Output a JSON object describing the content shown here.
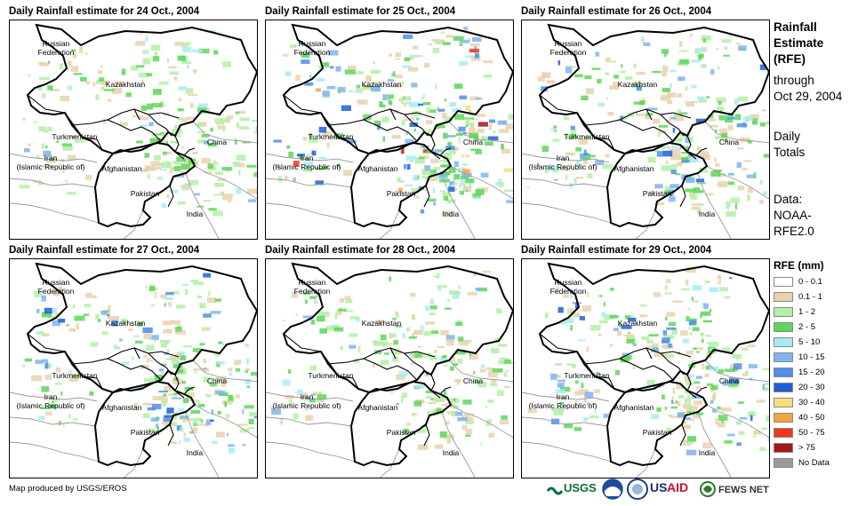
{
  "panels": [
    {
      "title": "Daily Rainfall estimate for 24 Oct., 2004",
      "intensity": "light"
    },
    {
      "title": "Daily Rainfall estimate for 25 Oct., 2004",
      "intensity": "heavy"
    },
    {
      "title": "Daily Rainfall estimate for 26 Oct., 2004",
      "intensity": "moderate"
    },
    {
      "title": "Daily Rainfall estimate for 27 Oct., 2004",
      "intensity": "moderate"
    },
    {
      "title": "Daily Rainfall estimate for 28 Oct., 2004",
      "intensity": "light"
    },
    {
      "title": "Daily Rainfall estimate for 29 Oct., 2004",
      "intensity": "moderate"
    }
  ],
  "map_labels": {
    "russia": "Russian\nFederation",
    "kazakhstan": "Kazakhstan",
    "turkmenistan": "Turkmenistan",
    "iran": "Iran\n(Islamic Republic of)",
    "afghanistan": "Afghanistan",
    "pakistan": "Pakistan",
    "china": "China",
    "india": "India"
  },
  "sidebar": {
    "title_line1": "Rainfall",
    "title_line2": "Estimate",
    "title_line3": "(RFE)",
    "through_label": "through",
    "through_date": "Oct 29, 2004",
    "totals_line1": "Daily",
    "totals_line2": "Totals",
    "data_line1": "Data:",
    "data_line2": "NOAA-",
    "data_line3": "RFE2.0"
  },
  "legend": {
    "title": "RFE (mm)",
    "items": [
      {
        "label": "0 - 0.1",
        "color": "#ffffff"
      },
      {
        "label": "0.1 - 1",
        "color": "#e8d2ad"
      },
      {
        "label": "1 - 2",
        "color": "#b3f0a8"
      },
      {
        "label": "2 - 5",
        "color": "#5fd65a"
      },
      {
        "label": "5 - 10",
        "color": "#a8ecf2"
      },
      {
        "label": "10 - 15",
        "color": "#7fb4f0"
      },
      {
        "label": "15 - 20",
        "color": "#4f8fe6"
      },
      {
        "label": "20 - 30",
        "color": "#1f5fd9"
      },
      {
        "label": "30 - 40",
        "color": "#f7e07a"
      },
      {
        "label": "40 - 50",
        "color": "#f2a640"
      },
      {
        "label": "50 - 75",
        "color": "#ee3a1a"
      },
      {
        "label": "> 75",
        "color": "#a01818"
      },
      {
        "label": "No Data",
        "color": "#9a9a9a"
      }
    ]
  },
  "footer": {
    "credit": "Map produced by USGS/EROS",
    "logos": [
      "USGS",
      "NOAA",
      "DOS",
      "USAID",
      "FEWS NET"
    ]
  }
}
